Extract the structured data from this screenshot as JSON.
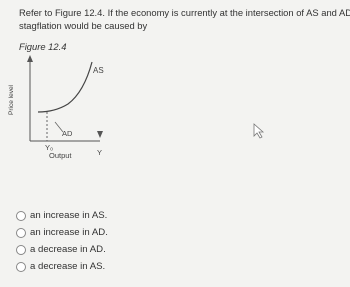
{
  "question": {
    "text_lines": [
      "Refer to Figure 12.4. If the economy is currently at the intersection of AS and AD,",
      "stagflation would be caused by"
    ],
    "figure_label": "Figure 12.4"
  },
  "figure": {
    "y_axis_label": "Price level",
    "x_axis_label": "Output",
    "as_label": "AS",
    "ad_label": "AD",
    "y0_label": "Y₀",
    "y_label": "Y"
  },
  "options": [
    "an increase in AS.",
    "an increase in AD.",
    "a decrease in AD.",
    "a decrease in AS."
  ]
}
